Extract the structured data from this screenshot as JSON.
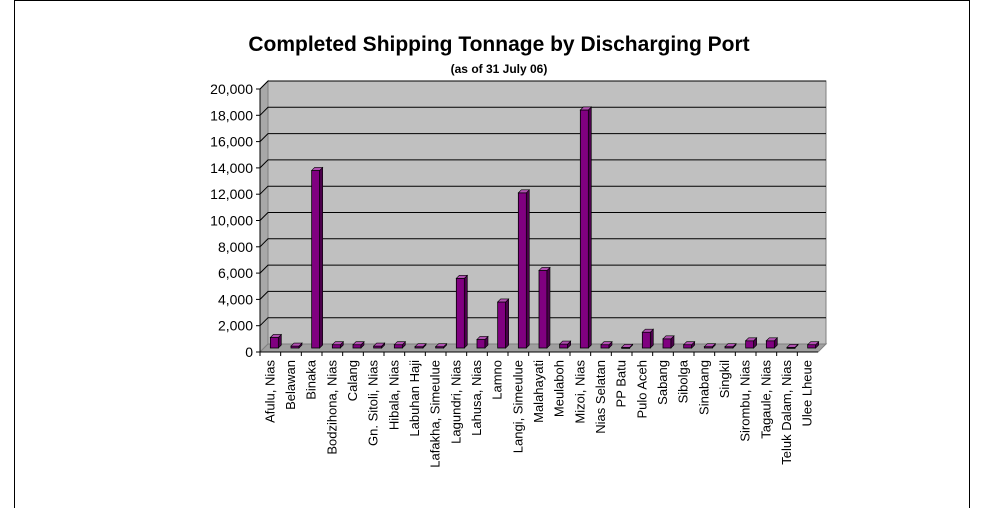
{
  "chart_data": {
    "type": "bar",
    "title": "Completed Shipping Tonnage by Discharging Port",
    "subtitle": "(as of 31 July 06)",
    "xlabel": "",
    "ylabel": "",
    "ylim": [
      0,
      20000
    ],
    "yticks": [
      "0",
      "2,000",
      "4,000",
      "6,000",
      "8,000",
      "10,000",
      "12,000",
      "14,000",
      "16,000",
      "18,000",
      "20,000"
    ],
    "grid": true,
    "legend": "none",
    "categories": [
      "Afulu, Nias",
      "Belawan",
      "Binaka",
      "Bodzihona, Nias",
      "Calang",
      "Gn. Sitoli, Nias",
      "Hibala, Nias",
      "Labuhan Haji",
      "Lafakha, Simeulue",
      "Lagundri, Nias",
      "Lahusa, Nias",
      "Lamno",
      "Langi, Simeulue",
      "Malahayati",
      "Meulaboh",
      "Mizoi, Nias",
      "Nias Selatan",
      "PP Batu",
      "Pulo Aceh",
      "Sabang",
      "Sibolga",
      "Sinabang",
      "Singkil",
      "Sirombu, Nias",
      "Tagaule, Nias",
      "Teluk Dalam, Nias",
      "Ulee Lheue"
    ],
    "values": [
      800,
      150,
      13500,
      250,
      250,
      150,
      250,
      100,
      100,
      5300,
      650,
      3500,
      11800,
      5900,
      300,
      18100,
      250,
      50,
      1200,
      700,
      250,
      100,
      100,
      550,
      550,
      50,
      250
    ],
    "colors": {
      "bar": "#800080",
      "plot_bg": "#c0c0c0",
      "grid": "#000000"
    }
  }
}
